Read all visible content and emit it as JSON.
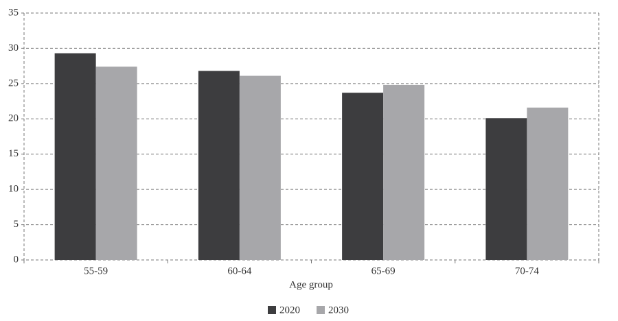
{
  "chart_data": {
    "type": "bar",
    "x_label": "Age group",
    "categories": [
      "55-59",
      "60-64",
      "65-69",
      "70-74"
    ],
    "series": [
      {
        "name": "2020",
        "color": "#3d3d3f",
        "values": [
          29.3,
          26.8,
          23.7,
          20.1
        ]
      },
      {
        "name": "2030",
        "color": "#a7a7aa",
        "values": [
          27.4,
          26.1,
          24.8,
          21.6
        ]
      }
    ],
    "ylim": [
      0,
      35
    ],
    "yticks": [
      0,
      5,
      10,
      15,
      20,
      25,
      30,
      35
    ],
    "grid": true,
    "legend": "bottom"
  }
}
